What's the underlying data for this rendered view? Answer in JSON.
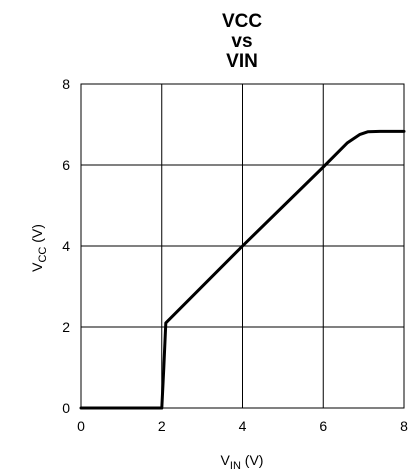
{
  "chart_data": {
    "type": "line",
    "title_lines": [
      "VCC",
      "vs",
      "VIN"
    ],
    "xlabel": {
      "main": "V",
      "sub": "IN",
      "unit": " (V)"
    },
    "ylabel": {
      "main": "V",
      "sub": "CC",
      "unit": " (V)"
    },
    "xlim": [
      0,
      8
    ],
    "ylim": [
      0,
      8
    ],
    "xticks": [
      "0",
      "2",
      "4",
      "6",
      "8"
    ],
    "yticks": [
      "0",
      "2",
      "4",
      "6",
      "8"
    ],
    "grid": true,
    "series": [
      {
        "x": [
          0,
          2.0,
          2.05,
          2.1,
          4.0,
          6.0,
          6.6,
          6.9,
          7.1,
          7.4,
          8.0
        ],
        "y": [
          0,
          0,
          1.0,
          2.1,
          4.0,
          5.95,
          6.55,
          6.75,
          6.82,
          6.83,
          6.83
        ]
      }
    ]
  }
}
